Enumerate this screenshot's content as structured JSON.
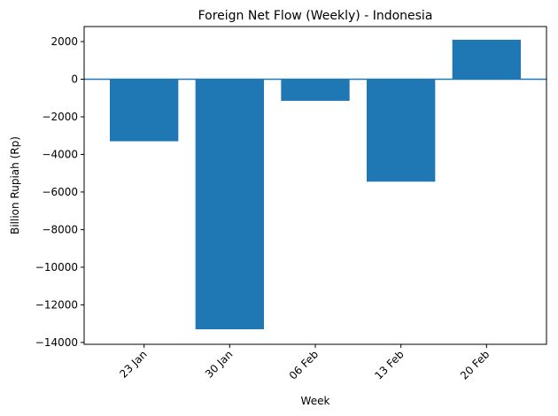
{
  "chart_data": {
    "type": "bar",
    "title": "Foreign Net Flow (Weekly) - Indonesia",
    "xlabel": "Week",
    "ylabel": "Billion Rupiah (Rp)",
    "categories": [
      "23 Jan",
      "30 Jan",
      "06 Feb",
      "13 Feb",
      "20 Feb"
    ],
    "values": [
      -3300,
      -13300,
      -1150,
      -5450,
      2100
    ],
    "ylim": [
      -14100,
      2800
    ],
    "yticks": [
      2000,
      0,
      -2000,
      -4000,
      -6000,
      -8000,
      -10000,
      -12000,
      -14000
    ],
    "ytick_labels": [
      "2000",
      "0",
      "−2000",
      "−4000",
      "−6000",
      "−8000",
      "−10000",
      "−12000",
      "−14000"
    ],
    "zero_line": true,
    "grid": false,
    "bar_color": "#1f77b4",
    "zero_line_color": "#1f77b4"
  }
}
